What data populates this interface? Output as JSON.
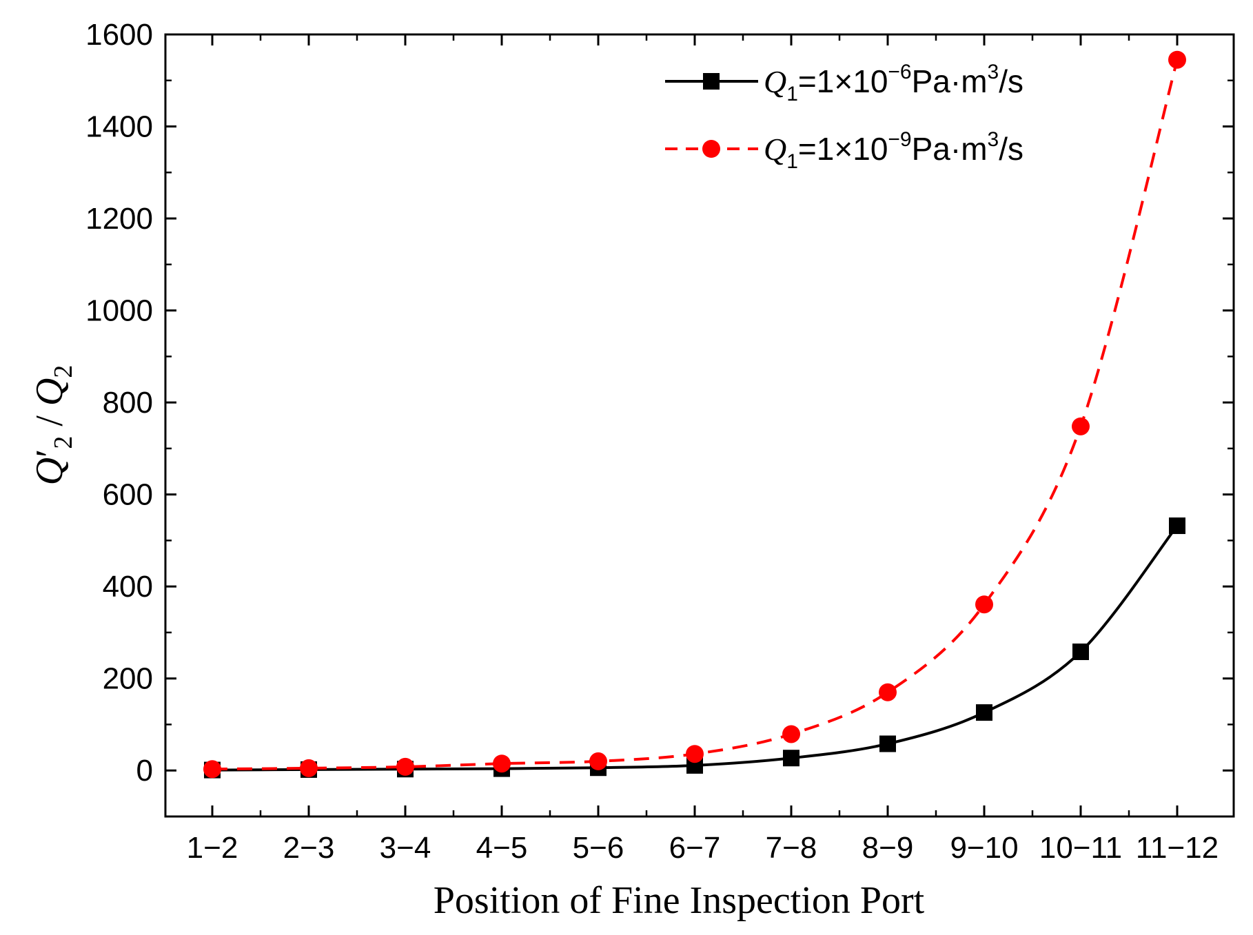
{
  "chart_data": {
    "type": "line",
    "title": "",
    "xlabel": "Position of Fine Inspection Port",
    "ylabel": "Q′2 / Q2",
    "ylabel_parts": {
      "q1": "Q",
      "prime": "′",
      "sub1": "2",
      "slash": " / ",
      "q2": "Q",
      "sub2": "2"
    },
    "categories": [
      "1−2",
      "2−3",
      "3−4",
      "4−5",
      "5−6",
      "6−7",
      "7−8",
      "8−9",
      "9−10",
      "10−11",
      "11−12"
    ],
    "ylim": [
      -100,
      1600
    ],
    "yticks": [
      0,
      200,
      400,
      600,
      800,
      1000,
      1200,
      1400,
      1600
    ],
    "grid": false,
    "legend_position": "top-right",
    "series": [
      {
        "name": "Q1=1×10⁻⁶Pa·m³/s",
        "legend": {
          "q": "Q",
          "sub": "1",
          "mid": "=1×10",
          "exp": "−6",
          "unit": "Pa·m",
          "unitexp": "3",
          "tail": "/s"
        },
        "color": "#000000",
        "marker": "square",
        "line_style": "solid",
        "values": [
          1,
          2,
          3,
          4,
          6,
          11,
          27,
          58,
          126,
          258,
          532
        ]
      },
      {
        "name": "Q1=1×10⁻⁹Pa·m³/s",
        "legend": {
          "q": "Q",
          "sub": "1",
          "mid": "=1×10",
          "exp": "−9",
          "unit": "Pa·m",
          "unitexp": "3",
          "tail": "/s"
        },
        "color": "#ff0000",
        "marker": "circle",
        "line_style": "dashed",
        "values": [
          3,
          5,
          8,
          15,
          20,
          36,
          79,
          170,
          361,
          748,
          1545
        ]
      }
    ]
  }
}
